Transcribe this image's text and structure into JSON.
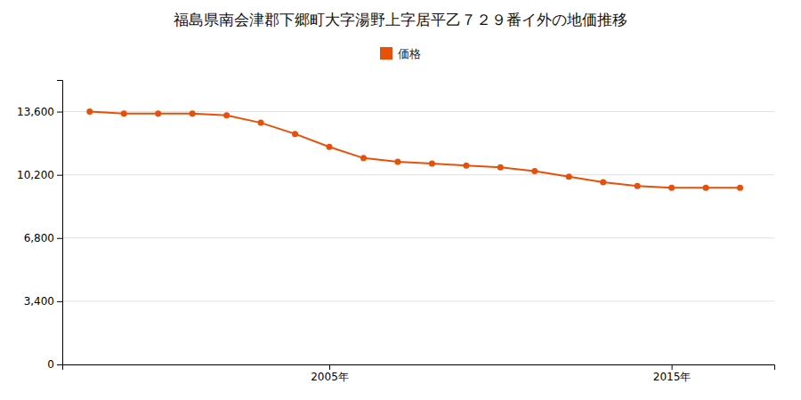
{
  "chart_data": {
    "type": "line",
    "title": "福島県南会津郡下郷町大字湯野上字居平乙７２９番イ外の地価推移",
    "x": [
      1998,
      1999,
      2000,
      2001,
      2002,
      2003,
      2004,
      2005,
      2006,
      2007,
      2008,
      2009,
      2010,
      2011,
      2012,
      2013,
      2014,
      2015,
      2016,
      2017
    ],
    "series": [
      {
        "name": "価格",
        "color": "#E8500A",
        "marker": "circle",
        "values": [
          13600,
          13500,
          13500,
          13500,
          13400,
          13000,
          12400,
          11700,
          11100,
          10900,
          10800,
          10700,
          10600,
          10400,
          10100,
          9800,
          9600,
          9500,
          9500,
          9500
        ]
      }
    ],
    "xlim": [
      1997.2,
      2018.0
    ],
    "xticks": [
      {
        "value": 2005,
        "label": "2005年"
      },
      {
        "value": 2015,
        "label": "2015年"
      }
    ],
    "ylim": [
      0,
      15300
    ],
    "yticks": [
      0,
      {
        "value": 3400,
        "label": "3,400"
      },
      {
        "value": 6800,
        "label": "6,800"
      },
      {
        "value": 10200,
        "label": "10,200"
      },
      {
        "value": 13600,
        "label": "13,600"
      }
    ],
    "grid": "y",
    "legend": "top"
  }
}
